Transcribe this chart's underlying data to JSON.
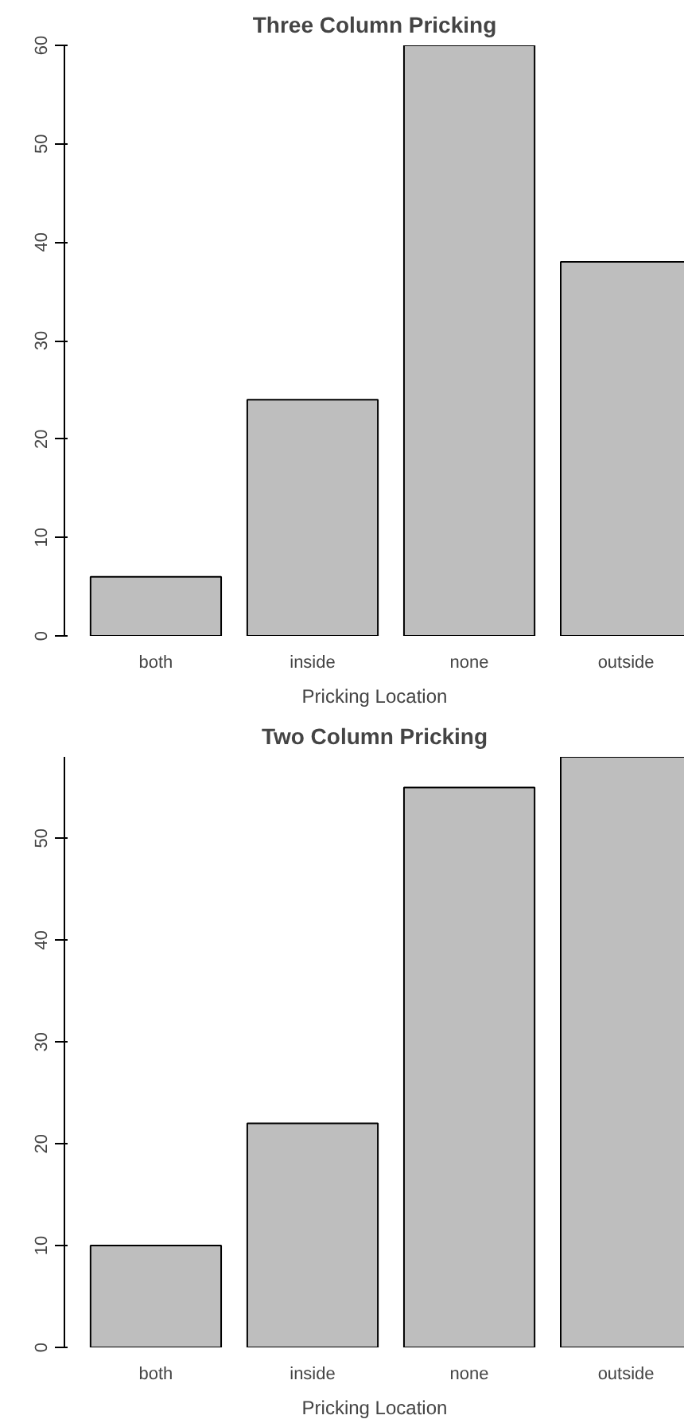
{
  "chart_data": [
    {
      "type": "bar",
      "title": "Three Column Pricking",
      "xlabel": "Pricking Location",
      "categories": [
        "both",
        "inside",
        "none",
        "outside"
      ],
      "values": [
        6,
        24,
        60,
        38
      ],
      "color": "#bebebe",
      "ylim": [
        0,
        60
      ],
      "yticks": [
        0,
        10,
        20,
        30,
        40,
        50,
        60
      ],
      "grid": false,
      "legend": false
    },
    {
      "type": "bar",
      "title": "Two Column Pricking",
      "xlabel": "Pricking Location",
      "categories": [
        "both",
        "inside",
        "none",
        "outside"
      ],
      "values": [
        10,
        22,
        55,
        58
      ],
      "color": "#bebebe",
      "ylim": [
        0,
        58
      ],
      "yticks": [
        0,
        10,
        20,
        30,
        40,
        50
      ],
      "grid": false,
      "legend": false
    }
  ]
}
